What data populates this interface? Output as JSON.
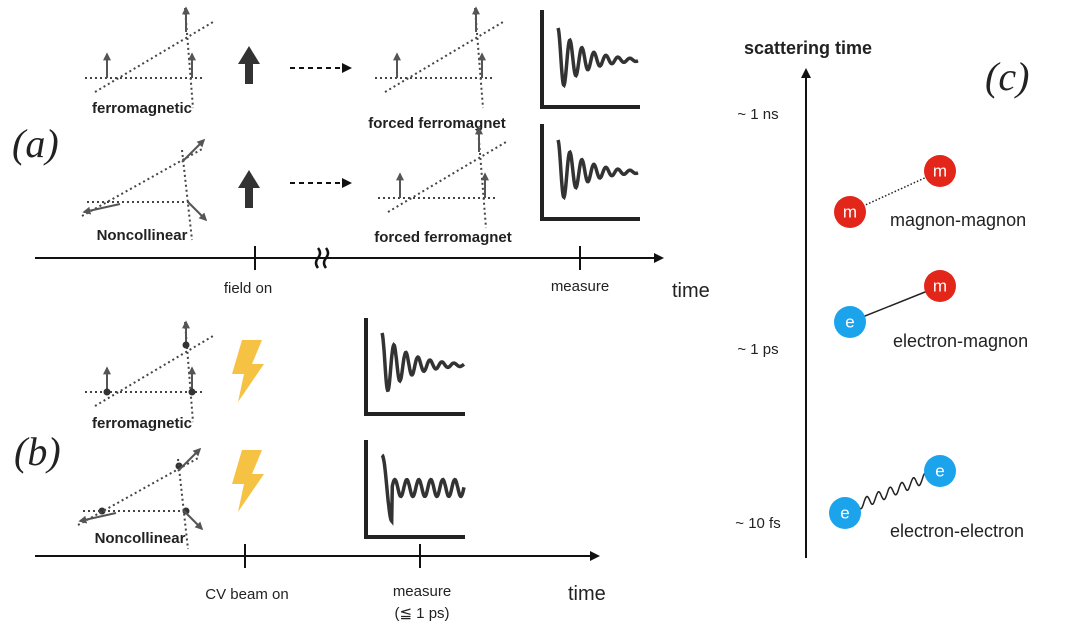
{
  "panel_a": {
    "label": "(a)",
    "rows": [
      {
        "label": "ferromagnetic",
        "result": "forced ferromagnet"
      },
      {
        "label": "Noncollinear",
        "result": "forced ferromagnet"
      }
    ],
    "timeline": {
      "events": [
        "field on",
        "measure"
      ],
      "axis": "time"
    }
  },
  "panel_b": {
    "label": "(b)",
    "rows": [
      "ferromagnetic",
      "Noncollinear"
    ],
    "timeline": {
      "events": [
        "CV beam on",
        "measure"
      ],
      "note": "(≦ 1 ps)",
      "axis": "time"
    }
  },
  "panel_c": {
    "label": "(c)",
    "axis_title": "scattering time",
    "ticks": [
      "~ 1 ns",
      "~ 1 ps",
      "~ 10 fs"
    ],
    "processes": [
      {
        "particles": [
          "m",
          "m"
        ],
        "label": "magnon-magnon"
      },
      {
        "particles": [
          "e",
          "m"
        ],
        "label": "electron-magnon"
      },
      {
        "particles": [
          "e",
          "e"
        ],
        "label": "electron-electron"
      }
    ]
  }
}
